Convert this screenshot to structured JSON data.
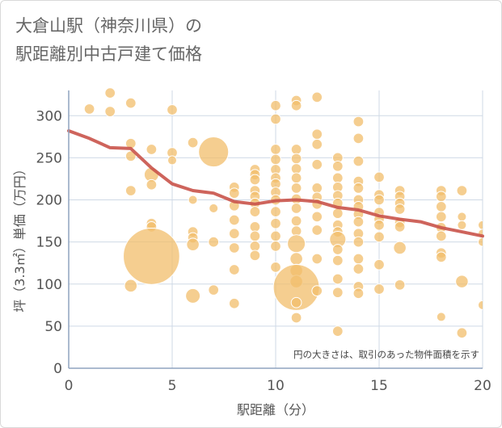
{
  "chart_data": {
    "type": "scatter",
    "title": [
      "大倉山駅（神奈川県）の",
      "駅距離別中古戸建て価格"
    ],
    "xlabel": "駅距離（分）",
    "ylabel": "坪（3.3㎡）単価（万円）",
    "xlim": [
      0,
      20
    ],
    "ylim": [
      0,
      330
    ],
    "xticks": [
      0,
      5,
      10,
      15,
      20
    ],
    "yticks": [
      0,
      50,
      100,
      150,
      200,
      250,
      300
    ],
    "grid": true,
    "note": "円の大きさは、取引のあった物件面積を示す",
    "colors": {
      "bubble": "#f2be6b",
      "trend": "#c9534a",
      "grid": "#cfd9e6",
      "axis": "#8fa3bf"
    },
    "points": [
      {
        "x": 1,
        "y": 308,
        "size": 2
      },
      {
        "x": 2,
        "y": 327,
        "size": 2
      },
      {
        "x": 2,
        "y": 305,
        "size": 2
      },
      {
        "x": 3,
        "y": 315,
        "size": 2
      },
      {
        "x": 3,
        "y": 267,
        "size": 2
      },
      {
        "x": 3,
        "y": 252,
        "size": 2
      },
      {
        "x": 3,
        "y": 211,
        "size": 2
      },
      {
        "x": 3,
        "y": 98,
        "size": 3
      },
      {
        "x": 4,
        "y": 260,
        "size": 2
      },
      {
        "x": 4,
        "y": 230,
        "size": 4
      },
      {
        "x": 4,
        "y": 218,
        "size": 2
      },
      {
        "x": 4,
        "y": 172,
        "size": 2
      },
      {
        "x": 4,
        "y": 168,
        "size": 2
      },
      {
        "x": 4,
        "y": 133,
        "size": 60
      },
      {
        "x": 5,
        "y": 307,
        "size": 2
      },
      {
        "x": 5,
        "y": 256,
        "size": 2
      },
      {
        "x": 5,
        "y": 247,
        "size": 1.5
      },
      {
        "x": 6,
        "y": 268,
        "size": 2
      },
      {
        "x": 6,
        "y": 200,
        "size": 1.5
      },
      {
        "x": 6,
        "y": 162,
        "size": 2
      },
      {
        "x": 6,
        "y": 155,
        "size": 2
      },
      {
        "x": 6,
        "y": 147,
        "size": 3
      },
      {
        "x": 6,
        "y": 86,
        "size": 4
      },
      {
        "x": 7,
        "y": 257,
        "size": 17
      },
      {
        "x": 7,
        "y": 190,
        "size": 1.5
      },
      {
        "x": 7,
        "y": 150,
        "size": 2
      },
      {
        "x": 7,
        "y": 93,
        "size": 2
      },
      {
        "x": 8,
        "y": 215,
        "size": 2
      },
      {
        "x": 8,
        "y": 208,
        "size": 2
      },
      {
        "x": 8,
        "y": 193,
        "size": 2
      },
      {
        "x": 8,
        "y": 176,
        "size": 2
      },
      {
        "x": 8,
        "y": 160,
        "size": 2
      },
      {
        "x": 8,
        "y": 143,
        "size": 2
      },
      {
        "x": 8,
        "y": 117,
        "size": 2
      },
      {
        "x": 8,
        "y": 77,
        "size": 2
      },
      {
        "x": 9,
        "y": 236,
        "size": 2
      },
      {
        "x": 9,
        "y": 230,
        "size": 2
      },
      {
        "x": 9,
        "y": 224,
        "size": 2
      },
      {
        "x": 9,
        "y": 211,
        "size": 2
      },
      {
        "x": 9,
        "y": 204,
        "size": 2
      },
      {
        "x": 9,
        "y": 196,
        "size": 2
      },
      {
        "x": 9,
        "y": 186,
        "size": 2
      },
      {
        "x": 9,
        "y": 168,
        "size": 2
      },
      {
        "x": 9,
        "y": 157,
        "size": 2
      },
      {
        "x": 9,
        "y": 145,
        "size": 2
      },
      {
        "x": 9,
        "y": 134,
        "size": 2
      },
      {
        "x": 10,
        "y": 312,
        "size": 2
      },
      {
        "x": 10,
        "y": 296,
        "size": 2
      },
      {
        "x": 10,
        "y": 260,
        "size": 2
      },
      {
        "x": 10,
        "y": 248,
        "size": 2
      },
      {
        "x": 10,
        "y": 236,
        "size": 2
      },
      {
        "x": 10,
        "y": 226,
        "size": 2
      },
      {
        "x": 10,
        "y": 219,
        "size": 2
      },
      {
        "x": 10,
        "y": 209,
        "size": 2
      },
      {
        "x": 10,
        "y": 200,
        "size": 2
      },
      {
        "x": 10,
        "y": 186,
        "size": 2
      },
      {
        "x": 10,
        "y": 172,
        "size": 2
      },
      {
        "x": 10,
        "y": 157,
        "size": 2
      },
      {
        "x": 10,
        "y": 145,
        "size": 2
      },
      {
        "x": 10,
        "y": 120,
        "size": 2
      },
      {
        "x": 11,
        "y": 318,
        "size": 2
      },
      {
        "x": 11,
        "y": 312,
        "size": 2
      },
      {
        "x": 11,
        "y": 260,
        "size": 2
      },
      {
        "x": 11,
        "y": 249,
        "size": 2
      },
      {
        "x": 11,
        "y": 237,
        "size": 2
      },
      {
        "x": 11,
        "y": 226,
        "size": 2
      },
      {
        "x": 11,
        "y": 214,
        "size": 2
      },
      {
        "x": 11,
        "y": 201,
        "size": 2
      },
      {
        "x": 11,
        "y": 190,
        "size": 2
      },
      {
        "x": 11,
        "y": 175,
        "size": 2
      },
      {
        "x": 11,
        "y": 163,
        "size": 2
      },
      {
        "x": 11,
        "y": 148,
        "size": 6
      },
      {
        "x": 11,
        "y": 130,
        "size": 3
      },
      {
        "x": 11,
        "y": 116,
        "size": 3
      },
      {
        "x": 11,
        "y": 103,
        "size": 3
      },
      {
        "x": 11,
        "y": 96,
        "size": 40
      },
      {
        "x": 11,
        "y": 78,
        "size": 2
      },
      {
        "x": 11,
        "y": 60,
        "size": 2
      },
      {
        "x": 12,
        "y": 322,
        "size": 2
      },
      {
        "x": 12,
        "y": 278,
        "size": 2
      },
      {
        "x": 12,
        "y": 266,
        "size": 2
      },
      {
        "x": 12,
        "y": 242,
        "size": 2
      },
      {
        "x": 12,
        "y": 214,
        "size": 2
      },
      {
        "x": 12,
        "y": 203,
        "size": 2
      },
      {
        "x": 12,
        "y": 195,
        "size": 2
      },
      {
        "x": 12,
        "y": 180,
        "size": 2
      },
      {
        "x": 12,
        "y": 164,
        "size": 2
      },
      {
        "x": 12,
        "y": 130,
        "size": 2
      },
      {
        "x": 12,
        "y": 92,
        "size": 2
      },
      {
        "x": 13,
        "y": 250,
        "size": 2
      },
      {
        "x": 13,
        "y": 240,
        "size": 2
      },
      {
        "x": 13,
        "y": 226,
        "size": 2
      },
      {
        "x": 13,
        "y": 215,
        "size": 2
      },
      {
        "x": 13,
        "y": 205,
        "size": 2
      },
      {
        "x": 13,
        "y": 196,
        "size": 2
      },
      {
        "x": 13,
        "y": 184,
        "size": 2
      },
      {
        "x": 13,
        "y": 170,
        "size": 2
      },
      {
        "x": 13,
        "y": 162,
        "size": 2
      },
      {
        "x": 13,
        "y": 153,
        "size": 5
      },
      {
        "x": 13,
        "y": 141,
        "size": 2
      },
      {
        "x": 13,
        "y": 128,
        "size": 2
      },
      {
        "x": 13,
        "y": 106,
        "size": 2
      },
      {
        "x": 13,
        "y": 90,
        "size": 2
      },
      {
        "x": 13,
        "y": 44,
        "size": 2
      },
      {
        "x": 14,
        "y": 293,
        "size": 2
      },
      {
        "x": 14,
        "y": 273,
        "size": 2
      },
      {
        "x": 14,
        "y": 246,
        "size": 2
      },
      {
        "x": 14,
        "y": 222,
        "size": 2
      },
      {
        "x": 14,
        "y": 214,
        "size": 2
      },
      {
        "x": 14,
        "y": 200,
        "size": 2
      },
      {
        "x": 14,
        "y": 192,
        "size": 2
      },
      {
        "x": 14,
        "y": 183,
        "size": 2
      },
      {
        "x": 14,
        "y": 174,
        "size": 2
      },
      {
        "x": 14,
        "y": 160,
        "size": 2
      },
      {
        "x": 14,
        "y": 150,
        "size": 2
      },
      {
        "x": 14,
        "y": 130,
        "size": 2
      },
      {
        "x": 14,
        "y": 118,
        "size": 2
      },
      {
        "x": 14,
        "y": 97,
        "size": 2
      },
      {
        "x": 14,
        "y": 89,
        "size": 2
      },
      {
        "x": 15,
        "y": 227,
        "size": 2
      },
      {
        "x": 15,
        "y": 206,
        "size": 2
      },
      {
        "x": 15,
        "y": 200,
        "size": 2
      },
      {
        "x": 15,
        "y": 185,
        "size": 2
      },
      {
        "x": 15,
        "y": 177,
        "size": 2
      },
      {
        "x": 15,
        "y": 170,
        "size": 2
      },
      {
        "x": 15,
        "y": 156,
        "size": 2
      },
      {
        "x": 15,
        "y": 123,
        "size": 2
      },
      {
        "x": 15,
        "y": 94,
        "size": 2
      },
      {
        "x": 16,
        "y": 211,
        "size": 2
      },
      {
        "x": 16,
        "y": 204,
        "size": 2
      },
      {
        "x": 16,
        "y": 196,
        "size": 2
      },
      {
        "x": 16,
        "y": 189,
        "size": 2
      },
      {
        "x": 16,
        "y": 173,
        "size": 2
      },
      {
        "x": 16,
        "y": 168,
        "size": 2
      },
      {
        "x": 16,
        "y": 143,
        "size": 3
      },
      {
        "x": 16,
        "y": 99,
        "size": 2
      },
      {
        "x": 18,
        "y": 211,
        "size": 2
      },
      {
        "x": 18,
        "y": 204,
        "size": 2
      },
      {
        "x": 18,
        "y": 192,
        "size": 2
      },
      {
        "x": 18,
        "y": 180,
        "size": 2
      },
      {
        "x": 18,
        "y": 167,
        "size": 2
      },
      {
        "x": 18,
        "y": 157,
        "size": 2
      },
      {
        "x": 18,
        "y": 137,
        "size": 2
      },
      {
        "x": 18,
        "y": 132,
        "size": 2
      },
      {
        "x": 18,
        "y": 61,
        "size": 1.5
      },
      {
        "x": 19,
        "y": 211,
        "size": 2
      },
      {
        "x": 19,
        "y": 180,
        "size": 1.5
      },
      {
        "x": 19,
        "y": 170,
        "size": 1.5
      },
      {
        "x": 19,
        "y": 103,
        "size": 3
      },
      {
        "x": 19,
        "y": 42,
        "size": 2
      },
      {
        "x": 20,
        "y": 170,
        "size": 1.5
      },
      {
        "x": 20,
        "y": 160,
        "size": 1.5
      },
      {
        "x": 20,
        "y": 150,
        "size": 1.5
      },
      {
        "x": 20,
        "y": 75,
        "size": 1.5
      }
    ],
    "trend": {
      "x": [
        0,
        1,
        2,
        3,
        4,
        5,
        6,
        7,
        8,
        9,
        10,
        11,
        12,
        13,
        14,
        15,
        16,
        17,
        18,
        19,
        20
      ],
      "y": [
        282,
        273,
        262,
        261,
        238,
        219,
        211,
        208,
        198,
        195,
        199,
        200,
        198,
        191,
        188,
        181,
        177,
        174,
        167,
        162,
        157
      ]
    }
  }
}
